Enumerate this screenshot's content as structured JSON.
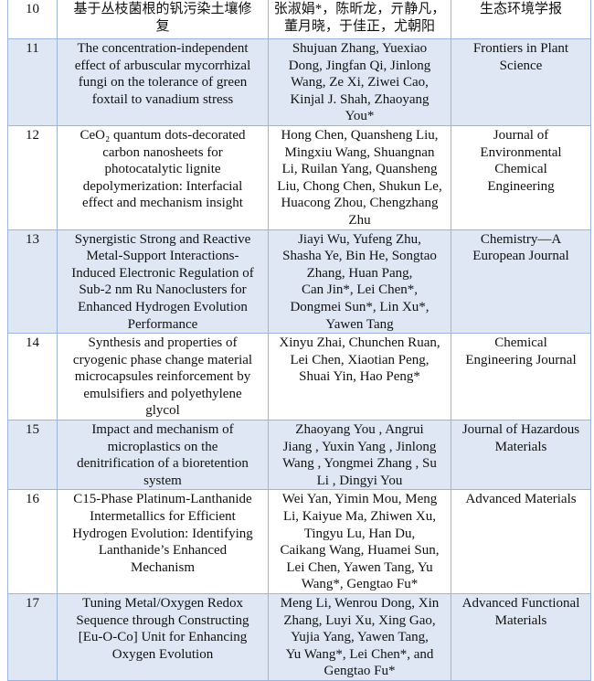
{
  "table": {
    "rows": [
      {
        "no": "10",
        "title": "基于丛枝菌根的钒污染土壤修\n复",
        "authors": "张淑娟*，陈昕龙，亓静凡，\n董月晓，于佳正，尤朝阳",
        "journal": "生态环境学报"
      },
      {
        "no": "11",
        "title": "The concentration-independent\neffect of arbuscular mycorrhizal\nfungi on the tolerance of green\nfoxtail to vanadium stress",
        "authors": "Shujuan Zhang, Yuexiao\nDong, Jingfan Qi, Jinlong\nWang, Ze Xi, Ziwei Cao,\nKinjal J. Shah, Zhaoyang\nYou*",
        "journal": "Frontiers in Plant\nScience"
      },
      {
        "no": "12",
        "title": "CeO₂ quantum dots-decorated\ncarbon nanosheets for\nphotocatalytic lignite\ndepolymerization: Interfacial\neffect and mechanism insight",
        "authors": "Hong Chen, Quansheng Liu,\nMingxiu Wang, Shuangnan\nLi, Ruilan Yang, Quansheng\nLiu, Chong Chen, Shukun Le,\nHuacong Zhou, Chengzhang\nZhu",
        "journal": "Journal of\nEnvironmental\nChemical\nEngineering"
      },
      {
        "no": "13",
        "title": "Synergistic Strong and Reactive\nMetal-Support Interactions-\nInduced Electronic Regulation of\nSub-2 nm Ru Nanoclusters for\nEnhanced Hydrogen Evolution\nPerformance",
        "authors": "Jiayi Wu, Yufeng Zhu,\nShasha Ye, Bin He, Songtao\nZhang, Huan Pang,\nCan Jin*, Lei Chen*,\nDongmei Sun*, Lin Xu*,\nYawen Tang",
        "journal": "Chemistry—A\nEuropean Journal"
      },
      {
        "no": "14",
        "title": "Synthesis and properties of\ncryogenic phase change material\nmicrocapsules reinforcement by\nemulsifiers and polyethylene\nglycol",
        "authors": "Xinyu Zhai, Chunchen Ruan,\nLei Chen, Xiaotian Peng,\nShuai Yin, Hao Peng*",
        "journal": "Chemical\nEngineering Journal"
      },
      {
        "no": "15",
        "title": "Impact and mechanism of\nmicroplastics on the\ndenitrification of a bioretention\nsystem",
        "authors": "Zhaoyang You , Angrui\nJiang , Yuxin Yang , Jinlong\nWang , Yongmei Zhang , Su\nLi , Dingyi You",
        "journal": "Journal of Hazardous\nMaterials"
      },
      {
        "no": "16",
        "title": "C15-Phase Platinum-Lanthanide\nIntermetallics for Efficient\nHydrogen Evolution: Identifying\nLanthanide’s Enhanced\nMechanism",
        "authors": "Wei Yan, Yimin Mou, Meng\nLi, Kaiyue Ma, Zhiwen Xu,\nTingyu Lu, Han Du,\nCaikang Wang, Huamei Sun,\nLei Chen, Yawen Tang, Yu\nWang*, Gengtao Fu*",
        "journal": "Advanced Materials"
      },
      {
        "no": "17",
        "title": "Tuning Metal/Oxygen Redox\nSequence through Constructing\n[Eu-O-Co] Unit for Enhancing\nOxygen Evolution",
        "authors": "Meng Li, Wenrou Dong, Xin\nZhang, Luyi Xu, Xing Gao,\nYujia Yang, Yawen Tang,\nYu Wang*, Lei Chen*, and\nGengtao Fu*",
        "journal": "Advanced Functional\nMaterials"
      }
    ]
  }
}
